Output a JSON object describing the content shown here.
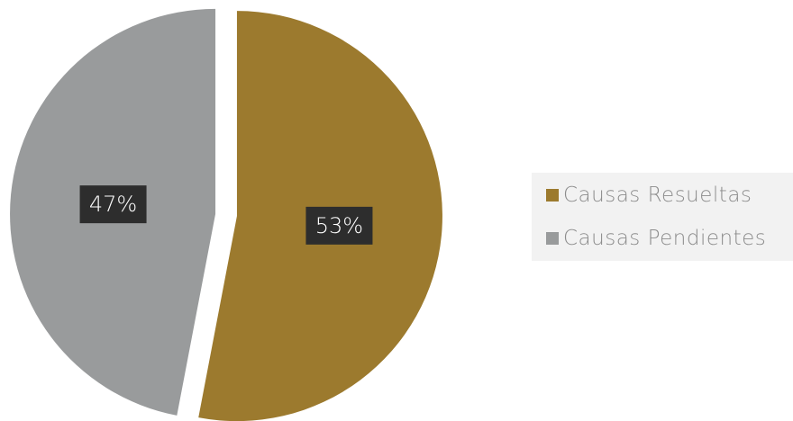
{
  "chart_data": {
    "type": "pie",
    "categories": [
      "Causas Resueltas",
      "Causas Pendientes"
    ],
    "values": [
      53,
      47
    ],
    "data_labels": [
      "53%",
      "47%"
    ],
    "colors": [
      "#9C7A2E",
      "#999B9C"
    ],
    "label_box_color": "#2d2d2d",
    "exploded": true,
    "start_angle": "12 o'clock",
    "direction": "clockwise",
    "legend_position": "right",
    "title": ""
  },
  "legend": {
    "items": [
      {
        "label": "Causas Resueltas",
        "color": "#9C7A2E"
      },
      {
        "label": "Causas Pendientes",
        "color": "#999B9C"
      }
    ]
  }
}
